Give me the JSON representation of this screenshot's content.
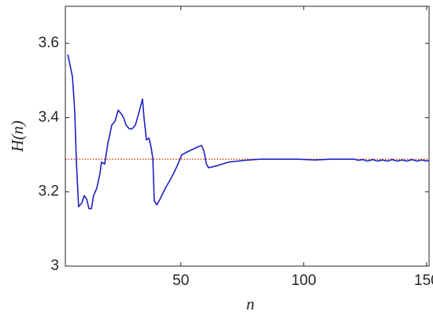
{
  "chart_data": {
    "type": "line",
    "x_label": "n",
    "y_label": "H(n)",
    "xlim": [
      3,
      151
    ],
    "ylim": [
      3,
      3.7
    ],
    "xticks": [
      50,
      100,
      150
    ],
    "yticks": [
      3,
      3.2,
      3.4,
      3.6
    ],
    "x": [
      4,
      5.9,
      6.8,
      7.5,
      8.4,
      9.7,
      10.7,
      11.7,
      12.6,
      13.6,
      14.5,
      15.8,
      17.1,
      17.7,
      19,
      20.3,
      21.9,
      23.2,
      24.5,
      25.8,
      26.7,
      27.7,
      29,
      30.2,
      31.5,
      32.8,
      34.4,
      35,
      36,
      37,
      37.9,
      38.6,
      39.2,
      40.2,
      41.5,
      43.7,
      46.3,
      48.5,
      50.4,
      53.3,
      56.5,
      58.4,
      59.4,
      60.4,
      61.3,
      64.5,
      69.3,
      75.8,
      82.2,
      98.2,
      104.6,
      111,
      120.6,
      122.2,
      124,
      126,
      128,
      130,
      132,
      134,
      136,
      138,
      140,
      142,
      144,
      146,
      148,
      150,
      151
    ],
    "series": [
      {
        "name": "H(n)",
        "color": "#1f1fc4",
        "values": [
          3.57,
          3.51,
          3.42,
          3.28,
          3.16,
          3.17,
          3.19,
          3.18,
          3.155,
          3.155,
          3.19,
          3.21,
          3.25,
          3.28,
          3.275,
          3.33,
          3.38,
          3.39,
          3.42,
          3.41,
          3.4,
          3.38,
          3.37,
          3.37,
          3.38,
          3.41,
          3.45,
          3.4,
          3.34,
          3.345,
          3.32,
          3.29,
          3.175,
          3.165,
          3.18,
          3.21,
          3.24,
          3.27,
          3.3,
          3.31,
          3.32,
          3.325,
          3.31,
          3.275,
          3.265,
          3.27,
          3.28,
          3.285,
          3.288,
          3.288,
          3.286,
          3.288,
          3.288,
          3.285,
          3.287,
          3.283,
          3.287,
          3.283,
          3.286,
          3.283,
          3.287,
          3.283,
          3.286,
          3.283,
          3.287,
          3.283,
          3.286,
          3.283,
          3.285
        ]
      }
    ],
    "reference_line": {
      "value": 3.288,
      "color": "#d95319"
    }
  }
}
